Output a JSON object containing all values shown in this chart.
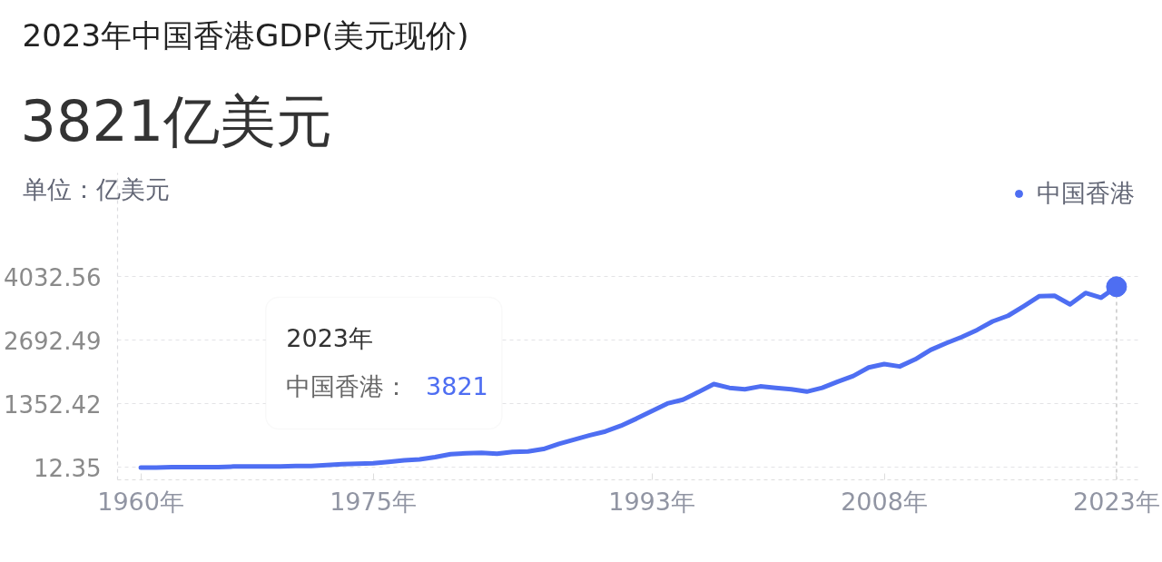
{
  "chart_data": {
    "type": "line",
    "title": "2023年中国香港GDP(美元现价)",
    "subtitle": "3821亿美元",
    "ylabel": "单位：亿美元",
    "x": [
      1960,
      1961,
      1962,
      1963,
      1964,
      1965,
      1966,
      1967,
      1968,
      1969,
      1970,
      1971,
      1972,
      1973,
      1974,
      1975,
      1976,
      1977,
      1978,
      1979,
      1980,
      1981,
      1982,
      1983,
      1984,
      1985,
      1986,
      1987,
      1988,
      1989,
      1990,
      1991,
      1992,
      1993,
      1994,
      1995,
      1996,
      1997,
      1998,
      1999,
      2000,
      2001,
      2002,
      2003,
      2004,
      2005,
      2006,
      2007,
      2008,
      2009,
      2010,
      2011,
      2012,
      2013,
      2014,
      2015,
      2016,
      2017,
      2018,
      2019,
      2020,
      2021,
      2022,
      2023
    ],
    "series": [
      {
        "name": "中国香港",
        "color": "#4e6ef2",
        "values": [
          10,
          10,
          20,
          20,
          20,
          20,
          30,
          30,
          30,
          30,
          40,
          40,
          60,
          80,
          90,
          100,
          130,
          160,
          180,
          230,
          290,
          310,
          320,
          300,
          340,
          350,
          400,
          510,
          600,
          690,
          770,
          890,
          1040,
          1200,
          1360,
          1440,
          1600,
          1770,
          1690,
          1660,
          1720,
          1690,
          1660,
          1610,
          1690,
          1820,
          1940,
          2120,
          2190,
          2140,
          2290,
          2490,
          2630,
          2760,
          2910,
          3090,
          3210,
          3410,
          3620,
          3630,
          3450,
          3690,
          3590,
          3821
        ]
      },
      {
        "type": "scatter",
        "color": "#4e6ef2",
        "marker": "circle",
        "x": [
          2023
        ],
        "values": [
          3821
        ]
      }
    ],
    "xlim": [
      1958.5,
      2024.5
    ],
    "xticks": [
      {
        "value": 1960,
        "label": "1960年"
      },
      {
        "value": 1975,
        "label": "1975年"
      },
      {
        "value": 1993,
        "label": "1993年"
      },
      {
        "value": 2008,
        "label": "2008年"
      },
      {
        "value": 2023,
        "label": "2023年"
      }
    ],
    "ylim": [
      -250,
      6220
    ],
    "yticks": [
      12.35,
      1352.42,
      2692.49,
      4032.56
    ],
    "grid": "y",
    "legend": "top right",
    "ref_lines": [
      {
        "axis": "x",
        "value": 2023,
        "color": "#c8c8c8",
        "line_style": "dashed"
      }
    ],
    "annotations": [
      "2023年",
      "中国香港： 3821"
    ]
  }
}
